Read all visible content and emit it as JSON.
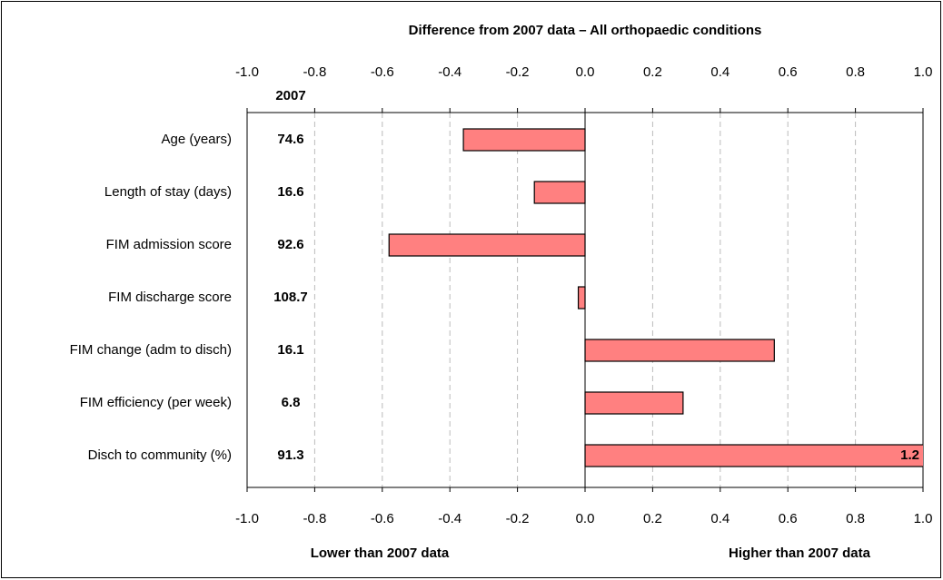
{
  "chart_data": {
    "type": "bar",
    "orientation": "horizontal",
    "title": "Difference from 2007 data – All orthopaedic conditions",
    "categories": [
      "Age (years)",
      "Length of stay (days)",
      "FIM admission score",
      "FIM discharge score",
      "FIM change (adm to disch)",
      "FIM efficiency (per week)",
      "Disch to community (%)"
    ],
    "values": [
      -0.36,
      -0.15,
      -0.58,
      -0.02,
      0.56,
      0.29,
      1.2
    ],
    "value_labels": [
      null,
      null,
      null,
      null,
      null,
      null,
      "1.2"
    ],
    "color": "#ff8080",
    "baseline_header": "2007",
    "baseline_values": [
      74.6,
      16.6,
      92.6,
      108.7,
      16.1,
      6.8,
      91.3
    ],
    "xlim": [
      -1,
      1
    ],
    "xticks": [
      {
        "value": -1,
        "label": "-1.0"
      },
      -0.8,
      -0.6,
      -0.4,
      -0.2,
      {
        "value": 0,
        "label": "0.0"
      },
      0.2,
      0.4,
      0.6,
      0.8,
      {
        "value": 1,
        "label": "1.0"
      }
    ],
    "grid": true,
    "lower_label": "Lower than 2007 data",
    "higher_label": "Higher than 2007 data"
  }
}
